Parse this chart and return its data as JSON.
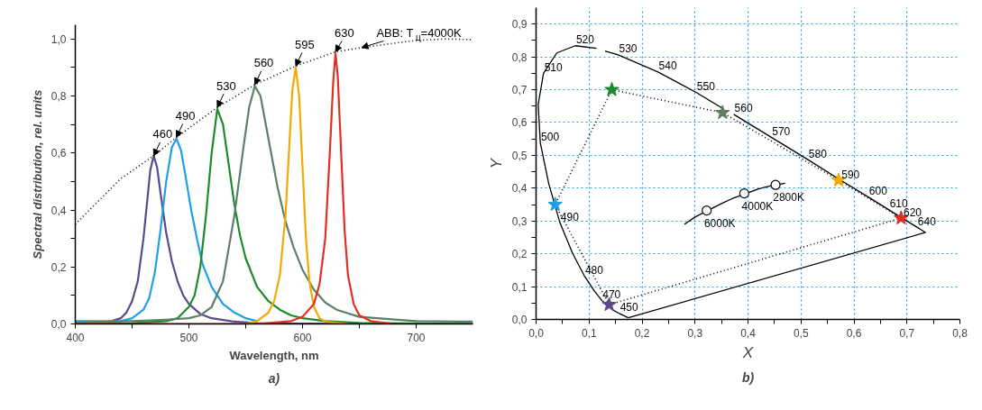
{
  "chart_data": [
    {
      "type": "line",
      "xlabel": "Wavelength, nm",
      "ylabel": "Spectral distribution, rel. units",
      "xlim": [
        400,
        750
      ],
      "ylim": [
        0,
        1.05
      ],
      "xticks": [
        400,
        {
          "value": 450,
          "label": null
        },
        500,
        {
          "value": 550,
          "label": null
        },
        600,
        {
          "value": 650,
          "label": null
        },
        700
      ],
      "yticks": [
        {
          "value": 0,
          "label": "0,0"
        },
        {
          "value": 0.1,
          "label": null
        },
        {
          "value": 0.2,
          "label": "0,2"
        },
        {
          "value": 0.3,
          "label": null
        },
        {
          "value": 0.4,
          "label": "0,4"
        },
        {
          "value": 0.5,
          "label": null
        },
        {
          "value": 0.6,
          "label": "0,6"
        },
        {
          "value": 0.7,
          "label": null
        },
        {
          "value": 0.8,
          "label": "0,8"
        },
        {
          "value": 0.9,
          "label": null
        },
        {
          "value": 1.0,
          "label": "1,0"
        }
      ],
      "series": [
        {
          "color": "#5b4a8a",
          "x": [
            400,
            420,
            430,
            440,
            445,
            450,
            455,
            460,
            463,
            466,
            469,
            472,
            475,
            480,
            485,
            490,
            495,
            500,
            510,
            520,
            540,
            560,
            600,
            750
          ],
          "values": [
            0.005,
            0.005,
            0.008,
            0.02,
            0.04,
            0.08,
            0.15,
            0.3,
            0.42,
            0.54,
            0.59,
            0.55,
            0.46,
            0.32,
            0.22,
            0.15,
            0.1,
            0.07,
            0.035,
            0.02,
            0.008,
            0.003,
            0.001,
            0
          ]
        },
        {
          "color": "#1ea0e6",
          "x": [
            400,
            440,
            450,
            460,
            465,
            470,
            475,
            480,
            485,
            489,
            493,
            497,
            502,
            507,
            512,
            520,
            530,
            540,
            550,
            560
          ],
          "values": [
            0.01,
            0.01,
            0.02,
            0.05,
            0.09,
            0.18,
            0.33,
            0.5,
            0.62,
            0.65,
            0.61,
            0.52,
            0.4,
            0.3,
            0.21,
            0.13,
            0.07,
            0.04,
            0.02,
            0.01
          ]
        },
        {
          "color": "#1a8c2a",
          "x": [
            400,
            450,
            480,
            490,
            500,
            505,
            510,
            515,
            520,
            525,
            530,
            535,
            540,
            545,
            550,
            560,
            570,
            580,
            590,
            600,
            620,
            650,
            750
          ],
          "values": [
            0,
            0.003,
            0.01,
            0.02,
            0.06,
            0.1,
            0.2,
            0.38,
            0.6,
            0.755,
            0.7,
            0.56,
            0.42,
            0.31,
            0.23,
            0.13,
            0.08,
            0.05,
            0.03,
            0.02,
            0.01,
            0.004,
            0
          ]
        },
        {
          "color": "#5e7f66",
          "x": [
            400,
            450,
            480,
            500,
            510,
            520,
            530,
            540,
            548,
            553,
            558,
            563,
            570,
            578,
            585,
            592,
            600,
            610,
            620,
            630,
            650,
            700,
            750
          ],
          "values": [
            0.005,
            0.01,
            0.015,
            0.02,
            0.03,
            0.06,
            0.15,
            0.38,
            0.62,
            0.76,
            0.835,
            0.8,
            0.65,
            0.48,
            0.36,
            0.27,
            0.19,
            0.12,
            0.075,
            0.05,
            0.025,
            0.01,
            0.008
          ]
        },
        {
          "color": "#f2a900",
          "x": [
            550,
            560,
            570,
            575,
            580,
            585,
            588,
            591,
            594,
            597,
            600,
            603,
            606,
            610,
            615,
            620,
            640
          ],
          "values": [
            0,
            0.01,
            0.04,
            0.08,
            0.17,
            0.38,
            0.6,
            0.82,
            0.9,
            0.8,
            0.55,
            0.3,
            0.15,
            0.06,
            0.02,
            0.008,
            0
          ]
        },
        {
          "color": "#e03020",
          "x": [
            400,
            560,
            590,
            600,
            610,
            615,
            620,
            624,
            627,
            629,
            631,
            634,
            637,
            640,
            645,
            650,
            660,
            680
          ],
          "values": [
            0,
            0,
            0.01,
            0.025,
            0.07,
            0.14,
            0.3,
            0.6,
            0.85,
            0.95,
            0.87,
            0.6,
            0.33,
            0.17,
            0.07,
            0.03,
            0.01,
            0
          ]
        },
        {
          "color": "#000000",
          "line_style": "dotted",
          "x": [
            400,
            420,
            440,
            469,
            489,
            525,
            558,
            594,
            629,
            652,
            680,
            700,
            725,
            750
          ],
          "values": [
            0.35,
            0.43,
            0.51,
            0.59,
            0.655,
            0.76,
            0.84,
            0.905,
            0.955,
            0.97,
            0.985,
            0.995,
            1.0,
            0.998
          ]
        }
      ],
      "annotations": [
        {
          "text": "460",
          "x": 469,
          "y": 0.59
        },
        {
          "text": "490",
          "x": 489,
          "y": 0.655
        },
        {
          "text": "530",
          "x": 525,
          "y": 0.76
        },
        {
          "text": "560",
          "x": 558,
          "y": 0.84
        },
        {
          "text": "595",
          "x": 594,
          "y": 0.905
        },
        {
          "text": "630",
          "x": 629,
          "y": 0.955
        },
        {
          "text": "ABB: T$_{ц}$=4000K",
          "x": 652,
          "y": 0.97
        },
        "a)"
      ]
    },
    {
      "type": "line",
      "xlabel": "X",
      "ylabel": "Y",
      "xlim": [
        0,
        0.8
      ],
      "ylim": [
        0,
        0.95
      ],
      "grid": true,
      "xticks": [
        {
          "value": 0,
          "label": "0,0"
        },
        {
          "value": 0.05,
          "label": null
        },
        {
          "value": 0.1,
          "label": "0,1"
        },
        {
          "value": 0.15,
          "label": null
        },
        {
          "value": 0.2,
          "label": "0,2"
        },
        {
          "value": 0.25,
          "label": null
        },
        {
          "value": 0.3,
          "label": "0,3"
        },
        {
          "value": 0.35,
          "label": null
        },
        {
          "value": 0.4,
          "label": "0,4"
        },
        {
          "value": 0.45,
          "label": null
        },
        {
          "value": 0.5,
          "label": "0,5"
        },
        {
          "value": 0.55,
          "label": null
        },
        {
          "value": 0.6,
          "label": "0,6"
        },
        {
          "value": 0.65,
          "label": null
        },
        {
          "value": 0.7,
          "label": "0,7"
        },
        {
          "value": 0.75,
          "label": null
        },
        {
          "value": 0.8,
          "label": "0,8"
        }
      ],
      "yticks": [
        {
          "value": 0,
          "label": "0,0"
        },
        {
          "value": 0.05,
          "label": null
        },
        {
          "value": 0.1,
          "label": "0,1"
        },
        {
          "value": 0.15,
          "label": null
        },
        {
          "value": 0.2,
          "label": "0,2"
        },
        {
          "value": 0.25,
          "label": null
        },
        {
          "value": 0.3,
          "label": "0,3"
        },
        {
          "value": 0.35,
          "label": null
        },
        {
          "value": 0.4,
          "label": "0,4"
        },
        {
          "value": 0.45,
          "label": null
        },
        {
          "value": 0.5,
          "label": "0,5"
        },
        {
          "value": 0.55,
          "label": null
        },
        {
          "value": 0.6,
          "label": "0,6"
        },
        {
          "value": 0.65,
          "label": null
        },
        {
          "value": 0.7,
          "label": "0,7"
        },
        {
          "value": 0.75,
          "label": null
        },
        {
          "value": 0.8,
          "label": "0,8"
        },
        {
          "value": 0.85,
          "label": null
        },
        {
          "value": 0.9,
          "label": "0,9"
        }
      ],
      "series": [
        {
          "color": "#000000",
          "x": [
            0.174,
            0.157,
            0.144,
            0.124,
            0.11,
            0.091,
            0.069,
            0.045,
            0.024,
            0.008,
            0.004,
            0.014,
            0.039,
            0.074,
            0.114
          ],
          "values": [
            0.005,
            0.018,
            0.03,
            0.058,
            0.087,
            0.133,
            0.201,
            0.295,
            0.413,
            0.538,
            0.655,
            0.75,
            0.812,
            0.834,
            0.826
          ]
        },
        {
          "color": "#000000",
          "x": [
            0.13,
            0.155,
            0.23,
            0.302,
            0.352
          ],
          "values": [
            0.818,
            0.806,
            0.754,
            0.692,
            0.643
          ]
        },
        {
          "color": "#000000",
          "x": [
            0.373,
            0.444,
            0.513,
            0.575,
            0.627,
            0.666,
            0.692,
            0.719,
            0.735,
            0.174
          ],
          "values": [
            0.625,
            0.555,
            0.487,
            0.424,
            0.373,
            0.334,
            0.308,
            0.281,
            0.265,
            0.005
          ]
        },
        {
          "color": "#000000",
          "line_style": "dotted",
          "x": [
            0.138,
            0.036,
            0.143,
            0.352,
            0.571,
            0.689
          ],
          "values": [
            0.045,
            0.35,
            0.7,
            0.63,
            0.424,
            0.309
          ]
        },
        {
          "color": "#000000",
          "line_style": "dotted",
          "x": [
            0.689,
            0.138
          ],
          "values": [
            0.309,
            0.045
          ]
        },
        {
          "color": "#000000",
          "x": [
            0.28,
            0.3,
            0.35,
            0.37,
            0.42,
            0.44,
            0.47
          ],
          "values": [
            0.29,
            0.312,
            0.353,
            0.368,
            0.398,
            0.406,
            0.415
          ]
        },
        {
          "type": "scatter",
          "marker": "star",
          "x": [
            0.138,
            0.036,
            0.143,
            0.352,
            0.571,
            0.689
          ],
          "values": [
            0.045,
            0.35,
            0.7,
            0.63,
            0.424,
            0.309
          ],
          "colors": [
            "#5b4a8a",
            "#1ea0e6",
            "#1a8c2a",
            "#5e7f66",
            "#f2a900",
            "#e03020"
          ]
        },
        {
          "type": "scatter",
          "marker": "circle",
          "color": "#ffffff",
          "x": [
            0.322,
            0.393,
            0.452
          ],
          "values": [
            0.332,
            0.384,
            0.41
          ]
        }
      ],
      "annotations": [
        {
          "text": "450",
          "x": 0.157,
          "y": 0.018
        },
        {
          "text": "470",
          "x": 0.124,
          "y": 0.058
        },
        {
          "text": "480",
          "x": 0.091,
          "y": 0.133
        },
        {
          "text": "490",
          "x": 0.045,
          "y": 0.295
        },
        {
          "text": "500",
          "x": 0.008,
          "y": 0.538
        },
        {
          "text": "510",
          "x": 0.014,
          "y": 0.75
        },
        {
          "text": "520",
          "x": 0.074,
          "y": 0.834
        },
        {
          "text": "530",
          "x": 0.155,
          "y": 0.806
        },
        {
          "text": "540",
          "x": 0.23,
          "y": 0.754
        },
        {
          "text": "550",
          "x": 0.302,
          "y": 0.692
        },
        {
          "text": "560",
          "x": 0.373,
          "y": 0.625
        },
        {
          "text": "570",
          "x": 0.444,
          "y": 0.555
        },
        {
          "text": "580",
          "x": 0.513,
          "y": 0.487
        },
        {
          "text": "590",
          "x": 0.575,
          "y": 0.424
        },
        {
          "text": "600",
          "x": 0.627,
          "y": 0.373
        },
        {
          "text": "610",
          "x": 0.666,
          "y": 0.334
        },
        {
          "text": "620",
          "x": 0.692,
          "y": 0.308
        },
        {
          "text": "640",
          "x": 0.719,
          "y": 0.281
        },
        {
          "text": "6000K",
          "x": 0.322,
          "y": 0.332
        },
        {
          "text": "4000K",
          "x": 0.393,
          "y": 0.384
        },
        {
          "text": "2800K",
          "x": 0.452,
          "y": 0.41
        },
        "b)"
      ]
    }
  ]
}
